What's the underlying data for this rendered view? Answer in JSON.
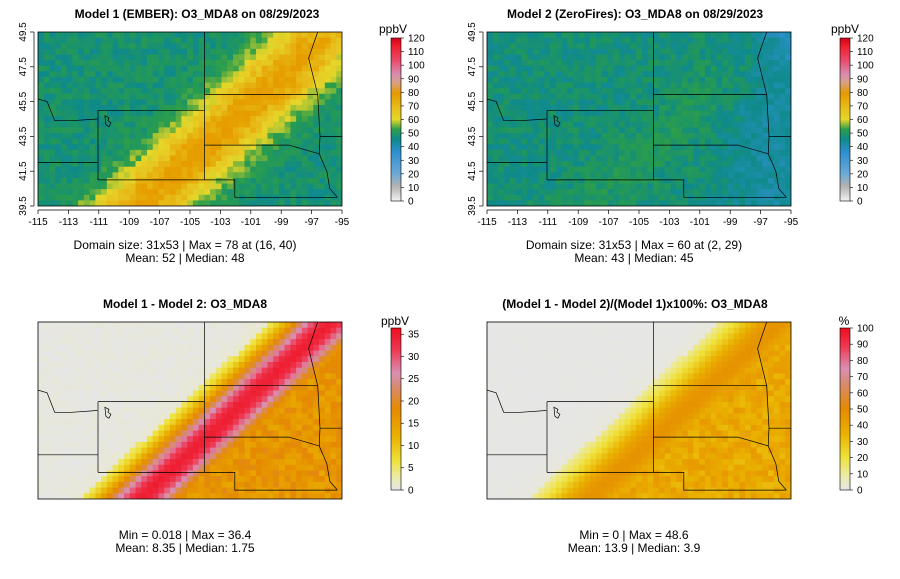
{
  "chart_data": [
    {
      "type": "heatmap",
      "title": "Model 1 (EMBER): O3_MDA8 on 08/29/2023",
      "xticks": [
        "-115",
        "-113",
        "-111",
        "-109",
        "-107",
        "-105",
        "-103",
        "-101",
        "-99",
        "-97",
        "-95"
      ],
      "yticks": [
        "39.5",
        "41.5",
        "43.5",
        "45.5",
        "47.5",
        "49.5"
      ],
      "xlim": [
        -115,
        -95
      ],
      "ylim": [
        39.5,
        49.5
      ],
      "colorbar": {
        "units": "ppbV",
        "ticks": [
          "0",
          "10",
          "20",
          "30",
          "40",
          "50",
          "60",
          "70",
          "80",
          "90",
          "100",
          "110",
          "120"
        ],
        "min": 0,
        "max": 120,
        "scale": "abs"
      },
      "stats_line1": "Domain size: 31x53 | Max = 78 at (16, 40)",
      "stats_line2": "Mean: 52 |  Median: 48",
      "field": {
        "base": 45,
        "plume_peak": 76,
        "plume_center_x": -102,
        "plume_slope": 1.25,
        "plume_width": 3.5,
        "northeast_low": 36
      }
    },
    {
      "type": "heatmap",
      "title": "Model 2 (ZeroFires): O3_MDA8 on 08/29/2023",
      "xticks": [
        "-115",
        "-113",
        "-111",
        "-109",
        "-107",
        "-105",
        "-103",
        "-101",
        "-99",
        "-97",
        "-95"
      ],
      "yticks": [
        "39.5",
        "41.5",
        "43.5",
        "45.5",
        "47.5",
        "49.5"
      ],
      "xlim": [
        -115,
        -95
      ],
      "ylim": [
        39.5,
        49.5
      ],
      "colorbar": {
        "units": "ppbV",
        "ticks": [
          "0",
          "10",
          "20",
          "30",
          "40",
          "50",
          "60",
          "70",
          "80",
          "90",
          "100",
          "110",
          "120"
        ],
        "min": 0,
        "max": 120,
        "scale": "abs"
      },
      "stats_line1": "Domain size: 31x53 | Max = 60 at (2, 29)",
      "stats_line2": "Mean: 43 |  Median: 45",
      "field": {
        "base": 44,
        "plume_peak": 48,
        "plume_center_x": -102,
        "plume_slope": 1.25,
        "plume_width": 3.0,
        "northeast_low": 30
      }
    },
    {
      "type": "heatmap",
      "title": "Model 1 - Model 2: O3_MDA8",
      "xlim": [
        -115,
        -95
      ],
      "ylim": [
        39.5,
        49.5
      ],
      "colorbar": {
        "units": "ppbV",
        "ticks": [
          "0",
          "5",
          "10",
          "15",
          "20",
          "25",
          "30",
          "35"
        ],
        "min": 0,
        "max": 36.4,
        "scale": "diff"
      },
      "stats_line1": "Min = 0.018 | Max = 36.4",
      "stats_line2": "Mean: 8.35 |  Median: 1.75",
      "field": {
        "plume_peak": 34,
        "plume_center_x": -102,
        "plume_slope": 1.25,
        "plume_width": 2.8,
        "east_level": 16
      }
    },
    {
      "type": "heatmap",
      "title": "(Model 1 - Model 2)/(Model 1)x100%: O3_MDA8",
      "xlim": [
        -115,
        -95
      ],
      "ylim": [
        39.5,
        49.5
      ],
      "colorbar": {
        "units": "%",
        "ticks": [
          "0",
          "10",
          "20",
          "30",
          "40",
          "50",
          "60",
          "70",
          "80",
          "90",
          "100"
        ],
        "min": 0,
        "max": 100,
        "scale": "pct"
      },
      "stats_line1": "Min = 0 | Max = 48.6",
      "stats_line2": "Mean: 13.9 |  Median: 3.9",
      "field": {
        "plume_peak": 46,
        "plume_center_x": -102,
        "plume_slope": 1.25,
        "plume_width": 3.2,
        "east_level": 38
      }
    }
  ]
}
